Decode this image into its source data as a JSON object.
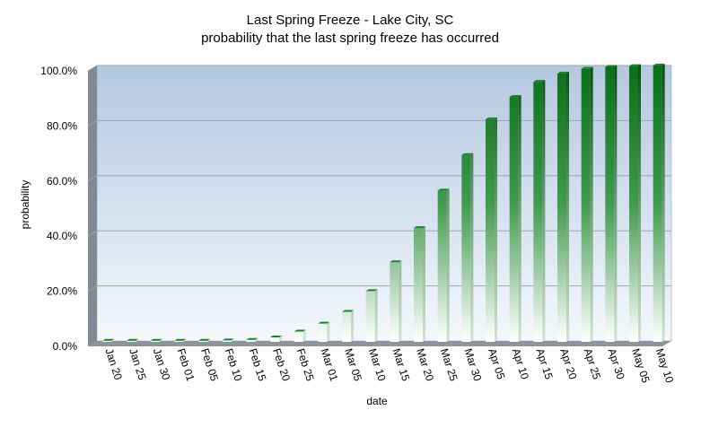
{
  "chart_data": {
    "type": "bar",
    "title": "Last Spring Freeze - Lake City, SC",
    "subtitle": "probability that the last spring freeze has occurred",
    "xlabel": "date",
    "ylabel": "probability",
    "ylim": [
      0,
      100
    ],
    "yticks": [
      "0.0%",
      "20.0%",
      "40.0%",
      "60.0%",
      "80.0%",
      "100.0%"
    ],
    "ytick_values": [
      0,
      20,
      40,
      60,
      80,
      100
    ],
    "grid": true,
    "legend": "none",
    "categories": [
      "Jan 20",
      "Jan 25",
      "Jan 30",
      "Feb 01",
      "Feb 05",
      "Feb 10",
      "Feb 15",
      "Feb 20",
      "Feb 25",
      "Mar 01",
      "Mar 05",
      "Mar 10",
      "Mar 15",
      "Mar 20",
      "Mar 25",
      "Mar 30",
      "Apr 05",
      "Apr 10",
      "Apr 15",
      "Apr 20",
      "Apr 25",
      "Apr 30",
      "May 05",
      "May 10"
    ],
    "values": [
      0.1,
      0.1,
      0.1,
      0.1,
      0.1,
      0.2,
      0.4,
      1.3,
      3.4,
      6.3,
      10.6,
      18.1,
      28.6,
      41.0,
      54.6,
      67.5,
      80.5,
      88.6,
      94.1,
      97.1,
      98.8,
      99.5,
      99.8,
      100.0
    ],
    "colors": {
      "bar_dark": "#0a6e1a",
      "bar_light": "#ffffff",
      "plot_top": "#b3c8e0",
      "plot_bottom": "#f4f8fc",
      "wall_side": "#7f8a94",
      "floor": "#8c959e",
      "gridline": "#9aa7b4"
    }
  }
}
